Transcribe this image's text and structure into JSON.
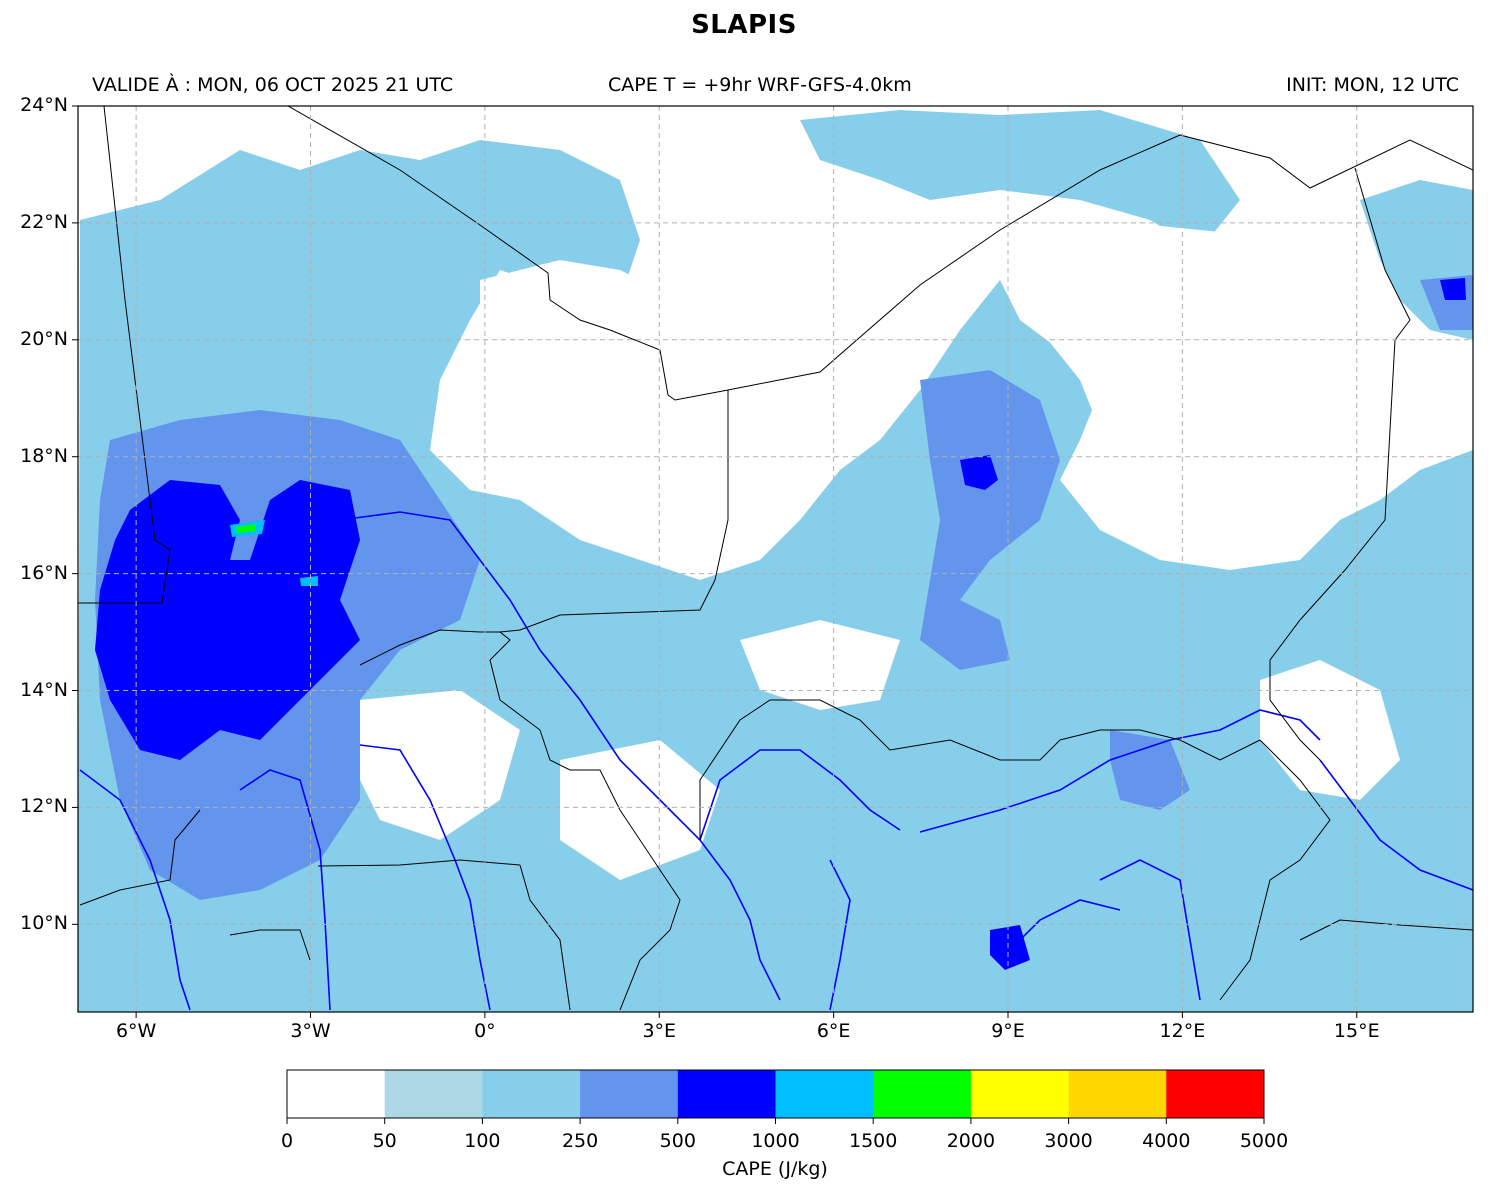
{
  "header": {
    "title": "SLAPIS",
    "valid_time": "VALIDE À : MON, 06 OCT 2025 21 UTC",
    "field_desc": "CAPE T = +9hr WRF-GFS-4.0km",
    "init_time": "INIT: MON, 12 UTC"
  },
  "map": {
    "lon_range": [
      -7,
      17
    ],
    "lat_range": [
      8.5,
      24
    ],
    "lat_ticks": [
      {
        "value": 24,
        "label": "24°N"
      },
      {
        "value": 22,
        "label": "22°N"
      },
      {
        "value": 20,
        "label": "20°N"
      },
      {
        "value": 18,
        "label": "18°N"
      },
      {
        "value": 16,
        "label": "16°N"
      },
      {
        "value": 14,
        "label": "14°N"
      },
      {
        "value": 12,
        "label": "12°N"
      },
      {
        "value": 10,
        "label": "10°N"
      }
    ],
    "lon_ticks": [
      {
        "value": -6,
        "label": "6°W"
      },
      {
        "value": -3,
        "label": "3°W"
      },
      {
        "value": 0,
        "label": "0°"
      },
      {
        "value": 3,
        "label": "3°E"
      },
      {
        "value": 6,
        "label": "6°E"
      },
      {
        "value": 9,
        "label": "9°E"
      },
      {
        "value": 12,
        "label": "12°E"
      },
      {
        "value": 15,
        "label": "15°E"
      }
    ],
    "colors": {
      "very_light": "#add8e6",
      "light": "#87ceeb",
      "medium": "#6495ed",
      "strong": "#0000ff",
      "river": "#0000ff",
      "border": "#000000",
      "grid": "#b0b0b0"
    }
  },
  "colorbar": {
    "label": "CAPE (J/kg)",
    "ticks": [
      "0",
      "50",
      "100",
      "250",
      "500",
      "1000",
      "1500",
      "2000",
      "3000",
      "4000",
      "5000"
    ],
    "colors": [
      "#ffffff",
      "#add8e6",
      "#87ceeb",
      "#6495ed",
      "#0000ff",
      "#00bfff",
      "#00ff00",
      "#ffff00",
      "#ffd700",
      "#ff0000"
    ]
  }
}
